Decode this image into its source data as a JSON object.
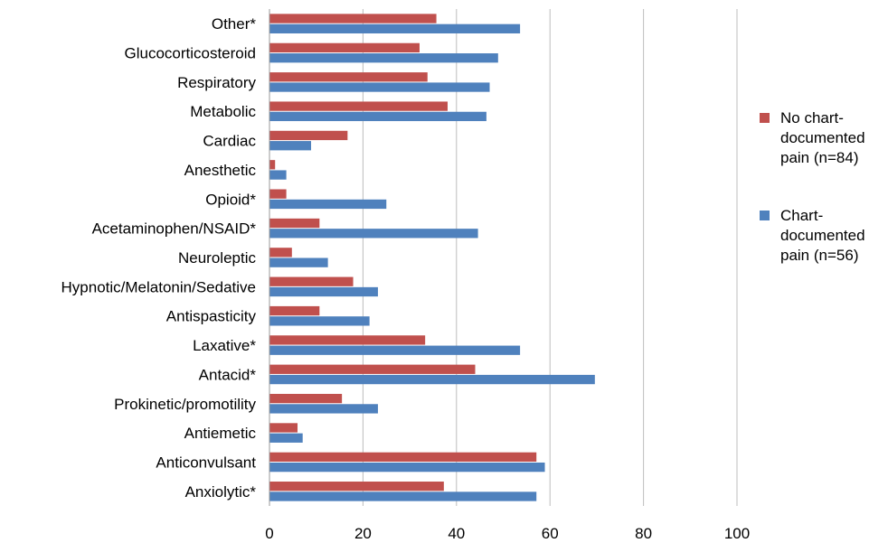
{
  "chart_data": {
    "type": "bar",
    "orientation": "horizontal",
    "categories": [
      "Other*",
      "Glucocorticosteroid",
      "Respiratory",
      "Metabolic",
      "Cardiac",
      "Anesthetic",
      "Opioid*",
      "Acetaminophen/NSAID*",
      "Neuroleptic",
      "Hypnotic/Melatonin/Sedative",
      "Antispasticity",
      "Laxative*",
      "Antacid*",
      "Prokinetic/promotility",
      "Antiemetic",
      "Anticonvulsant",
      "Anxiolytic*"
    ],
    "series": [
      {
        "name": "No chart-documented pain (n=84)",
        "color": "#c0504d",
        "values": [
          35.7,
          32.1,
          33.8,
          38.1,
          16.7,
          1.2,
          3.6,
          10.7,
          4.8,
          17.9,
          10.7,
          33.3,
          44.0,
          15.5,
          6.0,
          57.1,
          37.3
        ]
      },
      {
        "name": "Chart-documented pain (n=56)",
        "color": "#4f81bd",
        "values": [
          53.6,
          48.9,
          47.1,
          46.4,
          8.9,
          3.6,
          25.0,
          44.6,
          12.5,
          23.2,
          21.4,
          53.6,
          69.6,
          23.2,
          7.1,
          58.9,
          57.1
        ]
      }
    ],
    "xlim": [
      0,
      100
    ],
    "xticks": [
      "0",
      "20",
      "40",
      "60",
      "80",
      "100"
    ],
    "grid": "vertical",
    "legend_position": "right",
    "title": "",
    "xlabel": "",
    "ylabel": ""
  }
}
